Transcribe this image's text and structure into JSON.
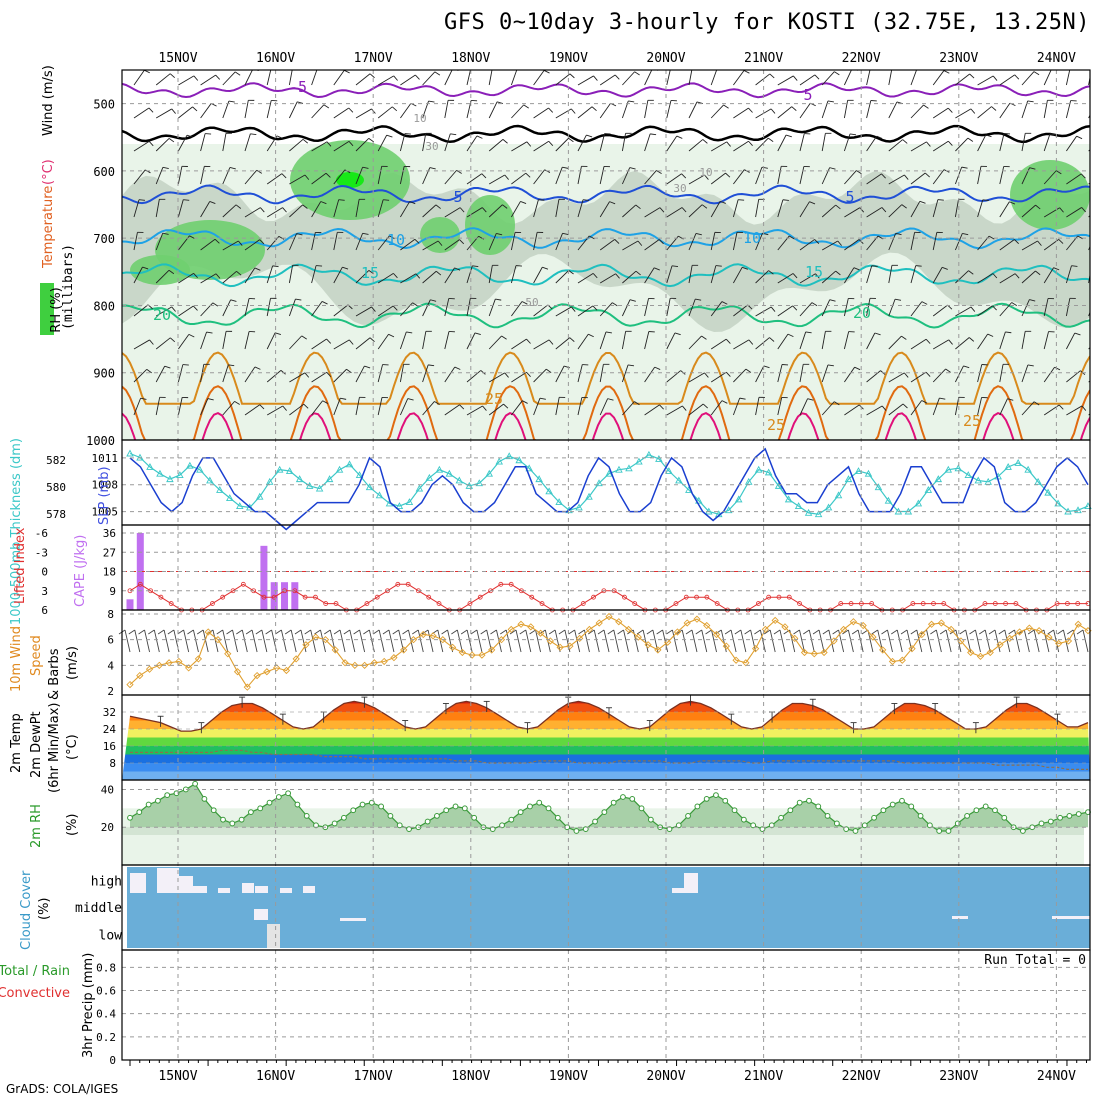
{
  "title": "GFS 0~10day 3-hourly for KOSTI (32.75E, 13.25N)",
  "credit": "GrADS: COLA/IGES",
  "dates": [
    "15NOV",
    "16NOV",
    "17NOV",
    "18NOV",
    "19NOV",
    "20NOV",
    "21NOV",
    "22NOV",
    "23NOV",
    "24NOV"
  ],
  "colors": {
    "temp_minus5": "#8a1fb8",
    "temp_0": "#000000",
    "temp_5": "#1f4fd6",
    "temp_10": "#1ea2e6",
    "temp_15": "#1fbfbf",
    "temp_20": "#1fbf7f",
    "temp_25": "#d88a1c",
    "temp_30": "#e06a10",
    "temp_35": "#e0107a",
    "thickness": "#3cc8c8",
    "slp": "#1a3fd0",
    "cape": "#c070f0",
    "lifted": "#e03030",
    "wind": "#e0a030",
    "rh": "#5fb85f",
    "cloud": "#6aaed8"
  },
  "chart_data": [
    {
      "panel": "upper-air",
      "type": "heatmap",
      "ylabel_parts": [
        "RH (%)",
        "Temperature",
        "(°C)",
        "Wind (m/s)"
      ],
      "yunit": "(millibars)",
      "ylim": [
        1000,
        450
      ],
      "yticks": [
        500,
        600,
        700,
        800,
        900,
        1000
      ],
      "isotherms": [
        {
          "label": "-5",
          "p": 480
        },
        {
          "label": "0",
          "p": 545
        },
        {
          "label": "5",
          "p": 635
        },
        {
          "label": "10",
          "p": 700
        },
        {
          "label": "15",
          "p": 755
        },
        {
          "label": "20",
          "p": 815
        },
        {
          "label": "25",
          "p": 870
        },
        {
          "label": "30",
          "p": 920
        },
        {
          "label": "35",
          "p": 960
        }
      ],
      "contour_labels": [
        "-5",
        "5",
        "5",
        "5",
        "10",
        "10",
        "15",
        "15",
        "20",
        "20",
        "25",
        "25",
        "25",
        "10",
        "30",
        "10",
        "30",
        "50"
      ]
    },
    {
      "panel": "thickness-slp",
      "type": "line",
      "ylabel_left": "1000-500mb Thickness (dm)",
      "ylabel_right": "SLP (mb)",
      "yticks_left": [
        578,
        580,
        582
      ],
      "yticks_right": [
        1005,
        1008,
        1011
      ],
      "ylim_left": [
        577.2,
        583.5
      ],
      "ylim_right": [
        1003.5,
        1013
      ],
      "slp": [
        1011,
        1010,
        1008,
        1006,
        1005,
        1006,
        1009,
        1011,
        1011,
        1009,
        1007,
        1006,
        1005,
        1005,
        1004,
        1003,
        1004,
        1005,
        1006,
        1006,
        1006,
        1006,
        1008,
        1011,
        1010,
        1006,
        1005,
        1005,
        1006,
        1008,
        1009,
        1008,
        1006,
        1005,
        1005,
        1006,
        1008,
        1010,
        1010,
        1007,
        1006,
        1005,
        1005,
        1006,
        1009,
        1011,
        1010,
        1007,
        1005,
        1005,
        1006,
        1009,
        1011,
        1010,
        1007,
        1005,
        1004,
        1005,
        1007,
        1009,
        1011,
        1012,
        1009,
        1007,
        1007,
        1006,
        1006,
        1008,
        1009,
        1010,
        1007,
        1005,
        1005,
        1005,
        1007,
        1010,
        1010,
        1008,
        1006,
        1006,
        1006,
        1009,
        1011,
        1010,
        1006,
        1005,
        1005,
        1006,
        1008,
        1010,
        1011,
        1010,
        1008
      ],
      "thickness": [
        582.5,
        582.2,
        581.5,
        581.0,
        580.6,
        580.9,
        581.6,
        581.3,
        580.5,
        579.8,
        579.2,
        578.6,
        578.5,
        579.3,
        580.4,
        581.3,
        581.2,
        580.6,
        580.1,
        579.9,
        580.6,
        581.3,
        581.7,
        580.9,
        580.0,
        579.4,
        578.8,
        578.6,
        578.9,
        579.9,
        580.7,
        581.3,
        581.0,
        580.5,
        580.1,
        580.3,
        581.0,
        581.9,
        582.3,
        582.0,
        581.4,
        580.6,
        579.7,
        578.9,
        578.3,
        578.5,
        579.3,
        580.3,
        581.0,
        581.3,
        581.4,
        581.9,
        582.4,
        582.1,
        581.2,
        580.5,
        579.8,
        579.0,
        578.2,
        578.0,
        578.3,
        579.1,
        580.4,
        581.3,
        581.1,
        580.1,
        579.1,
        578.6,
        578.1,
        578.0,
        578.5,
        579.4,
        580.6,
        581.2,
        581.0,
        580.0,
        579.0,
        578.2,
        578.2,
        578.8,
        579.8,
        580.6,
        581.3,
        581.4,
        580.9,
        580.5,
        580.4,
        580.8,
        581.5,
        581.8,
        581.3,
        580.4,
        579.6,
        578.8,
        578.2,
        578.3,
        578.6
      ]
    },
    {
      "panel": "stability",
      "type": "bar",
      "ylabel_left": "Lifted Index",
      "ylabel_right": "CAPE (J/kg)",
      "yticks_left": [
        6,
        3,
        0,
        -3,
        -6
      ],
      "yticks_right": [
        9,
        18,
        27,
        36
      ],
      "cape": [
        5,
        36,
        0,
        0,
        0,
        0,
        0,
        0,
        0,
        0,
        0,
        0,
        0,
        30,
        13,
        13,
        13,
        0,
        0,
        0,
        0,
        0,
        0,
        0,
        0,
        0,
        0,
        0,
        0,
        0,
        0,
        0,
        0,
        0,
        0,
        0,
        0,
        0,
        0,
        0,
        0,
        0,
        0,
        0,
        0,
        0,
        0,
        0,
        0,
        0,
        0,
        0,
        0,
        0,
        0,
        0,
        0,
        0,
        0,
        0,
        0,
        0,
        0,
        0,
        0,
        0,
        0,
        0,
        0,
        0,
        0,
        0,
        0,
        0,
        0,
        0,
        0,
        0,
        0,
        0,
        0,
        0,
        0,
        0,
        0,
        0,
        0,
        0,
        0,
        0,
        0,
        0,
        0,
        0
      ],
      "lifted_index": [
        3,
        2,
        3,
        4,
        5,
        6,
        6,
        6,
        5,
        4,
        3,
        2,
        3,
        4,
        4,
        3,
        3,
        4,
        4,
        5,
        5,
        6,
        6,
        5,
        4,
        3,
        2,
        2,
        3,
        4,
        5,
        6,
        6,
        5,
        4,
        3,
        2,
        2,
        3,
        4,
        5,
        6,
        6,
        6,
        5,
        4,
        3,
        3,
        4,
        5,
        6,
        6,
        6,
        5,
        4,
        4,
        4,
        5,
        6,
        6,
        6,
        5,
        4,
        4,
        4,
        5,
        6,
        6,
        6,
        5,
        5,
        5,
        5,
        6,
        6,
        6,
        5,
        5,
        5,
        5,
        6,
        6,
        6,
        5,
        5,
        5,
        5,
        6,
        6,
        6,
        5,
        5,
        5,
        5
      ]
    },
    {
      "panel": "wind",
      "type": "line",
      "ylabel": "10m Wind Speed & Barbs (m/s)",
      "yticks": [
        2,
        4,
        6,
        8
      ],
      "ylim": [
        2,
        8
      ],
      "wind_speed": [
        2.5,
        3.2,
        3.7,
        4.0,
        4.2,
        4.3,
        3.8,
        4.5,
        6.6,
        6.0,
        4.9,
        3.5,
        2.3,
        3.2,
        3.5,
        3.8,
        3.6,
        4.5,
        5.6,
        6.2,
        6.0,
        5.2,
        4.2,
        4.0,
        4.0,
        4.2,
        4.3,
        4.6,
        5.2,
        6.0,
        6.4,
        6.3,
        6.0,
        5.4,
        5.0,
        4.8,
        4.8,
        5.2,
        6.0,
        6.8,
        7.2,
        7.0,
        6.5,
        5.9,
        5.4,
        5.5,
        6.1,
        6.8,
        7.3,
        7.8,
        7.4,
        6.8,
        6.2,
        5.6,
        5.2,
        5.8,
        6.6,
        7.3,
        7.6,
        7.1,
        6.4,
        5.5,
        4.4,
        4.2,
        5.3,
        6.8,
        7.5,
        7.0,
        6.1,
        5.0,
        4.9,
        5.0,
        5.9,
        6.8,
        7.4,
        7.1,
        6.2,
        5.2,
        4.3,
        4.4,
        5.3,
        6.4,
        7.2,
        7.3,
        6.8,
        5.9,
        5.0,
        4.7,
        5.0,
        5.6,
        6.1,
        6.6,
        6.9,
        6.7,
        6.2,
        5.7,
        5.9,
        7.2,
        6.7
      ]
    },
    {
      "panel": "temperature",
      "type": "area",
      "ylabel": "2m Temp 2m DewPt (6hr Min/Max) (°C)",
      "yticks": [
        8,
        16,
        24,
        32
      ],
      "ylim": [
        0,
        40
      ],
      "temp": [
        30,
        29,
        28,
        27,
        25,
        23,
        23,
        24,
        28,
        32,
        35,
        36,
        36,
        34,
        31,
        28,
        25,
        24,
        25,
        29,
        33,
        36,
        37,
        36,
        34,
        31,
        28,
        25,
        24,
        25,
        29,
        33,
        36,
        37,
        36,
        34,
        31,
        28,
        25,
        24,
        25,
        29,
        33,
        36,
        37,
        36,
        34,
        31,
        28,
        25,
        24,
        25,
        29,
        33,
        36,
        37,
        36,
        34,
        31,
        28,
        25,
        24,
        25,
        29,
        33,
        36,
        36,
        35,
        33,
        30,
        27,
        24,
        24,
        25,
        29,
        33,
        36,
        36,
        35,
        33,
        30,
        27,
        24,
        24,
        25,
        29,
        33,
        36,
        36,
        34,
        31,
        28,
        25,
        25,
        27
      ],
      "dewpoint": [
        13,
        13,
        13,
        13,
        13,
        13,
        13,
        13,
        13,
        14,
        14,
        14,
        13,
        13,
        12,
        12,
        12,
        12,
        12,
        11,
        11,
        11,
        11,
        10,
        10,
        10,
        10,
        10,
        10,
        10,
        10,
        10,
        9,
        9,
        9,
        8,
        8,
        8,
        8,
        8,
        9,
        9,
        9,
        9,
        8,
        8,
        8,
        8,
        9,
        9,
        9,
        9,
        9,
        8,
        8,
        8,
        9,
        9,
        9,
        9,
        9,
        8,
        8,
        9,
        9,
        9,
        9,
        9,
        9,
        9,
        9,
        9,
        9,
        9,
        9,
        9,
        8,
        8,
        8,
        8,
        8,
        8,
        8,
        8,
        8,
        7,
        7,
        7,
        7,
        7,
        6,
        6,
        5,
        5,
        5
      ]
    },
    {
      "panel": "humidity",
      "type": "area",
      "ylabel": "2m RH (%)",
      "yticks": [
        20,
        40
      ],
      "ylim": [
        0,
        45
      ],
      "rh": [
        25,
        28,
        32,
        34,
        37,
        38,
        40,
        43,
        35,
        29,
        24,
        22,
        24,
        28,
        30,
        33,
        36,
        38,
        32,
        26,
        21,
        20,
        22,
        25,
        29,
        32,
        33,
        31,
        26,
        21,
        19,
        20,
        23,
        26,
        29,
        31,
        30,
        25,
        20,
        19,
        21,
        24,
        28,
        31,
        33,
        30,
        25,
        20,
        18,
        19,
        23,
        28,
        33,
        36,
        35,
        30,
        24,
        20,
        19,
        21,
        26,
        31,
        35,
        37,
        34,
        29,
        24,
        21,
        19,
        21,
        25,
        29,
        33,
        34,
        31,
        26,
        22,
        19,
        18,
        21,
        25,
        29,
        32,
        34,
        31,
        26,
        21,
        18,
        18,
        22,
        26,
        29,
        31,
        29,
        25,
        20,
        18,
        20,
        22,
        23,
        25,
        26,
        27,
        28
      ]
    },
    {
      "panel": "cloud",
      "type": "heatmap",
      "ylabel": "Cloud Cover (%)",
      "levels": [
        "high",
        "middle",
        "low"
      ]
    },
    {
      "panel": "precip",
      "type": "bar",
      "ylabel_parts": [
        "Total / Rain",
        "Convective",
        "3hr Precip (mm)"
      ],
      "yticks": [
        0,
        0.2,
        0.4,
        0.6,
        0.8
      ],
      "ylim": [
        0,
        0.95
      ],
      "run_total_label": "Run Total = 0",
      "values": []
    }
  ]
}
